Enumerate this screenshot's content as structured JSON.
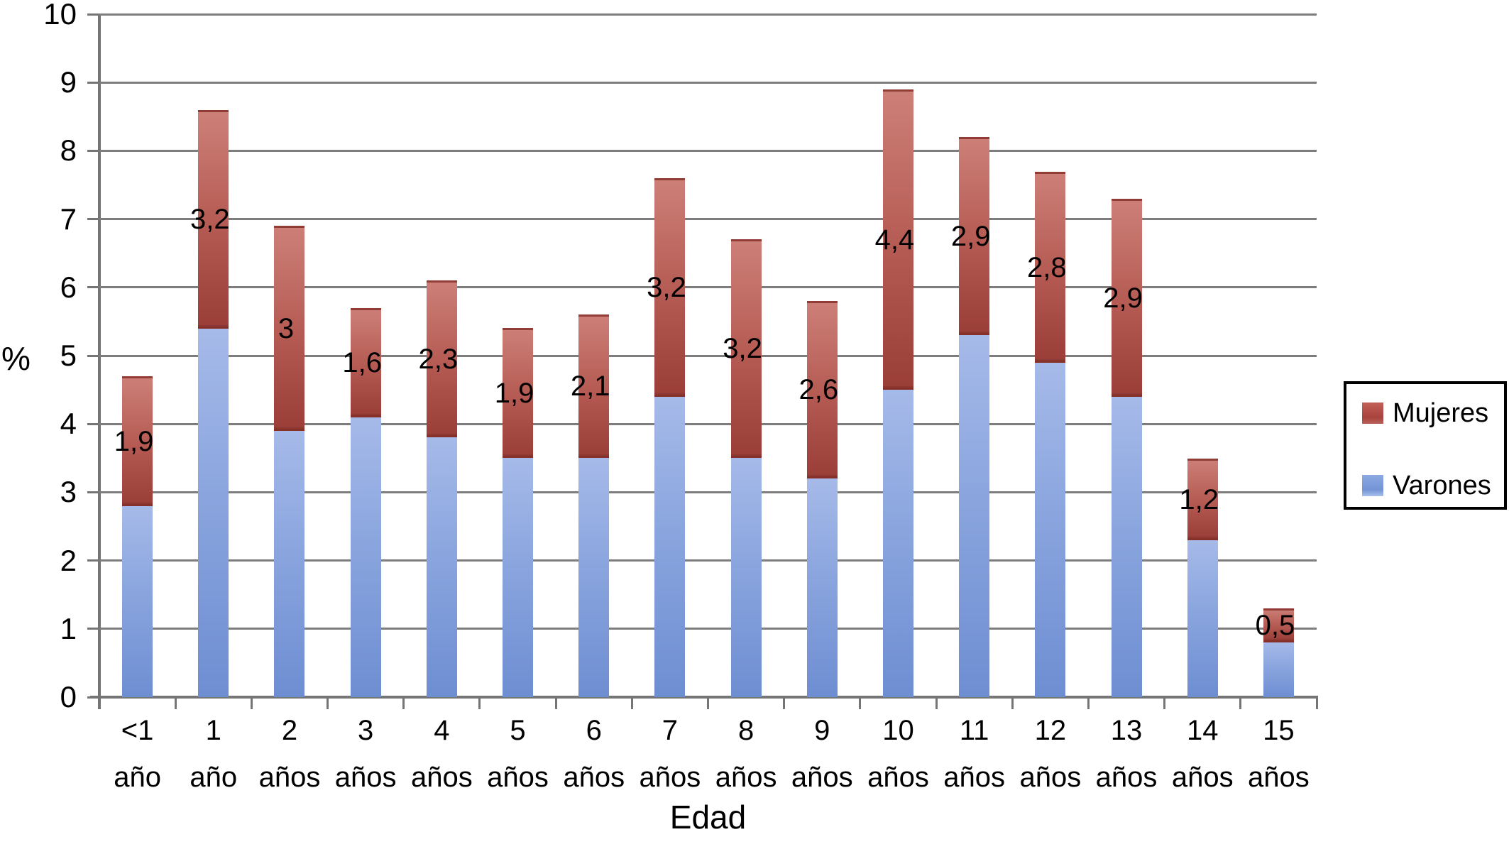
{
  "chart_data": {
    "type": "bar",
    "stacked": true,
    "title": "",
    "xlabel": "Edad",
    "ylabel": "%",
    "ylim": [
      0,
      10
    ],
    "yticks": [
      0,
      1,
      2,
      3,
      4,
      5,
      6,
      7,
      8,
      9,
      10
    ],
    "grid": true,
    "legend_position": "right",
    "categories": [
      {
        "line1": "<1",
        "line2": "año"
      },
      {
        "line1": "1",
        "line2": "año"
      },
      {
        "line1": "2",
        "line2": "años"
      },
      {
        "line1": "3",
        "line2": "años"
      },
      {
        "line1": "4",
        "line2": "años"
      },
      {
        "line1": "5",
        "line2": "años"
      },
      {
        "line1": "6",
        "line2": "años"
      },
      {
        "line1": "7",
        "line2": "años"
      },
      {
        "line1": "8",
        "line2": "años"
      },
      {
        "line1": "9",
        "line2": "años"
      },
      {
        "line1": "10",
        "line2": "años"
      },
      {
        "line1": "11",
        "line2": "años"
      },
      {
        "line1": "12",
        "line2": "años"
      },
      {
        "line1": "13",
        "line2": "años"
      },
      {
        "line1": "14",
        "line2": "años"
      },
      {
        "line1": "15",
        "line2": "años"
      }
    ],
    "series": [
      {
        "name": "Varones",
        "color": "#87a3dc",
        "values": [
          2.8,
          5.4,
          3.9,
          4.1,
          3.8,
          3.5,
          3.5,
          4.4,
          3.5,
          3.2,
          4.5,
          5.3,
          4.9,
          4.4,
          2.3,
          0.8
        ]
      },
      {
        "name": "Mujeres",
        "color": "#ab463f",
        "values": [
          1.9,
          3.2,
          3.0,
          1.6,
          2.3,
          1.9,
          2.1,
          3.2,
          3.2,
          2.6,
          4.4,
          2.9,
          2.8,
          2.9,
          1.2,
          0.5
        ],
        "labels": [
          "1,9",
          "3,2",
          "3",
          "1,6",
          "2,3",
          "1,9",
          "2,1",
          "3,2",
          "3,2",
          "2,6",
          "4,4",
          "2,9",
          "2,8",
          "2,9",
          "1,2",
          "0,5"
        ]
      }
    ],
    "totals": [
      4.7,
      8.6,
      6.9,
      5.7,
      6.1,
      5.4,
      5.6,
      7.6,
      6.7,
      5.8,
      8.9,
      8.2,
      7.7,
      7.3,
      3.5,
      1.3
    ]
  },
  "colors": {
    "grid": "#7d7d7d",
    "axis": "#757575",
    "varones_top": "#a6bae9",
    "varones_mid": "#8aa5de",
    "varones_bottom": "#6e8ed2",
    "mujeres_top": "#cd8078",
    "mujeres_mid": "#b45a52",
    "mujeres_bottom": "#9a3e37"
  },
  "legend": {
    "items": [
      {
        "label": "Mujeres"
      },
      {
        "label": "Varones"
      }
    ]
  }
}
